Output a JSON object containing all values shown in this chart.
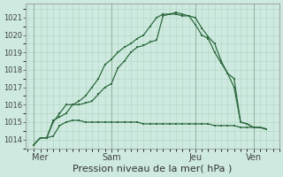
{
  "background_color": "#ceeae0",
  "grid_color": "#b0d4c0",
  "line_color": "#2d6a3f",
  "title": "Pression niveau de la mer( hPa )",
  "ylim": [
    1013.5,
    1021.8
  ],
  "yticks": [
    1014,
    1015,
    1016,
    1017,
    1018,
    1019,
    1020,
    1021
  ],
  "xlim": [
    -0.3,
    9.5
  ],
  "day_labels": [
    "Mer",
    "Sam",
    "Jeu",
    "Ven"
  ],
  "day_positions": [
    0.25,
    3.0,
    6.25,
    8.5
  ],
  "vline_positions": [
    0.0,
    3.0,
    6.25,
    8.5
  ],
  "series1_x": [
    0.0,
    0.25,
    0.5,
    0.75,
    1.0,
    1.25,
    1.5,
    1.75,
    2.0,
    2.25,
    2.5,
    2.75,
    3.0,
    3.25,
    3.5,
    3.75,
    4.0,
    4.25,
    4.5,
    4.75,
    5.0,
    5.25,
    5.5,
    5.75,
    6.0,
    6.25,
    6.5,
    6.75,
    7.0,
    7.25,
    7.5,
    7.75,
    8.0,
    8.25,
    8.5,
    8.75,
    9.0
  ],
  "series1_y": [
    1013.7,
    1014.1,
    1014.1,
    1014.2,
    1014.8,
    1015.0,
    1015.1,
    1015.1,
    1015.0,
    1015.0,
    1015.0,
    1015.0,
    1015.0,
    1015.0,
    1015.0,
    1015.0,
    1015.0,
    1014.9,
    1014.9,
    1014.9,
    1014.9,
    1014.9,
    1014.9,
    1014.9,
    1014.9,
    1014.9,
    1014.9,
    1014.9,
    1014.8,
    1014.8,
    1014.8,
    1014.8,
    1014.7,
    1014.7,
    1014.7,
    1014.7,
    1014.6
  ],
  "series2_x": [
    0.0,
    0.25,
    0.5,
    0.75,
    1.0,
    1.25,
    1.5,
    1.75,
    2.0,
    2.25,
    2.5,
    2.75,
    3.0,
    3.25,
    3.5,
    3.75,
    4.0,
    4.25,
    4.5,
    4.75,
    5.0,
    5.25,
    5.5,
    5.75,
    6.0,
    6.25,
    6.5,
    6.75,
    7.0,
    7.25,
    7.5,
    7.75,
    8.0,
    8.25,
    8.5,
    8.75,
    9.0
  ],
  "series2_y": [
    1013.7,
    1014.1,
    1014.1,
    1015.1,
    1015.3,
    1015.5,
    1016.0,
    1016.0,
    1016.1,
    1016.2,
    1016.6,
    1017.0,
    1017.2,
    1018.1,
    1018.5,
    1019.0,
    1019.3,
    1019.4,
    1019.6,
    1019.7,
    1021.1,
    1021.2,
    1021.3,
    1021.2,
    1021.1,
    1021.0,
    1020.4,
    1019.9,
    1019.5,
    1018.5,
    1017.8,
    1017.0,
    1015.0,
    1014.9,
    1014.7,
    1014.7,
    1014.6
  ],
  "series3_x": [
    0.0,
    0.25,
    0.5,
    0.75,
    1.0,
    1.25,
    1.5,
    1.75,
    2.0,
    2.25,
    2.5,
    2.75,
    3.0,
    3.25,
    3.5,
    3.75,
    4.0,
    4.25,
    4.5,
    4.75,
    5.0,
    5.25,
    5.5,
    5.75,
    6.0,
    6.25,
    6.5,
    6.75,
    7.0,
    7.25,
    7.5,
    7.75,
    8.0,
    8.25,
    8.5,
    8.75,
    9.0
  ],
  "series3_y": [
    1013.7,
    1014.1,
    1014.1,
    1015.0,
    1015.5,
    1016.0,
    1016.0,
    1016.2,
    1016.5,
    1017.0,
    1017.5,
    1018.3,
    1018.6,
    1019.0,
    1019.3,
    1019.5,
    1019.8,
    1020.0,
    1020.5,
    1021.0,
    1021.2,
    1021.2,
    1021.2,
    1021.1,
    1021.1,
    1020.6,
    1020.0,
    1019.8,
    1019.0,
    1018.4,
    1017.8,
    1017.5,
    1015.0,
    1014.9,
    1014.7,
    1014.7,
    1014.6
  ]
}
